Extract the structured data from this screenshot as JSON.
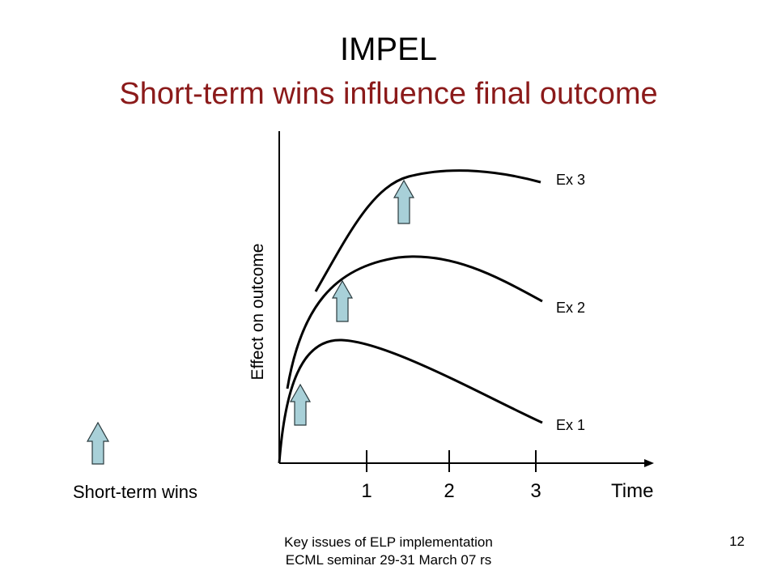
{
  "title": "IMPEL",
  "subtitle": "Short-term wins influence final outcome",
  "diagram": {
    "y_axis_label": "Effect on outcome",
    "x_axis_label": "Time",
    "x_ticks": [
      "1",
      "2",
      "3"
    ],
    "curve_labels": [
      "Ex 1",
      "Ex 2",
      "Ex 3"
    ],
    "legend_label": "Short-term wins",
    "arrow_color": "#a8d0d8"
  },
  "footer": {
    "line1": "Key issues of ELP implementation",
    "line2": "ECML seminar 29-31 March 07 rs",
    "page": "12"
  }
}
